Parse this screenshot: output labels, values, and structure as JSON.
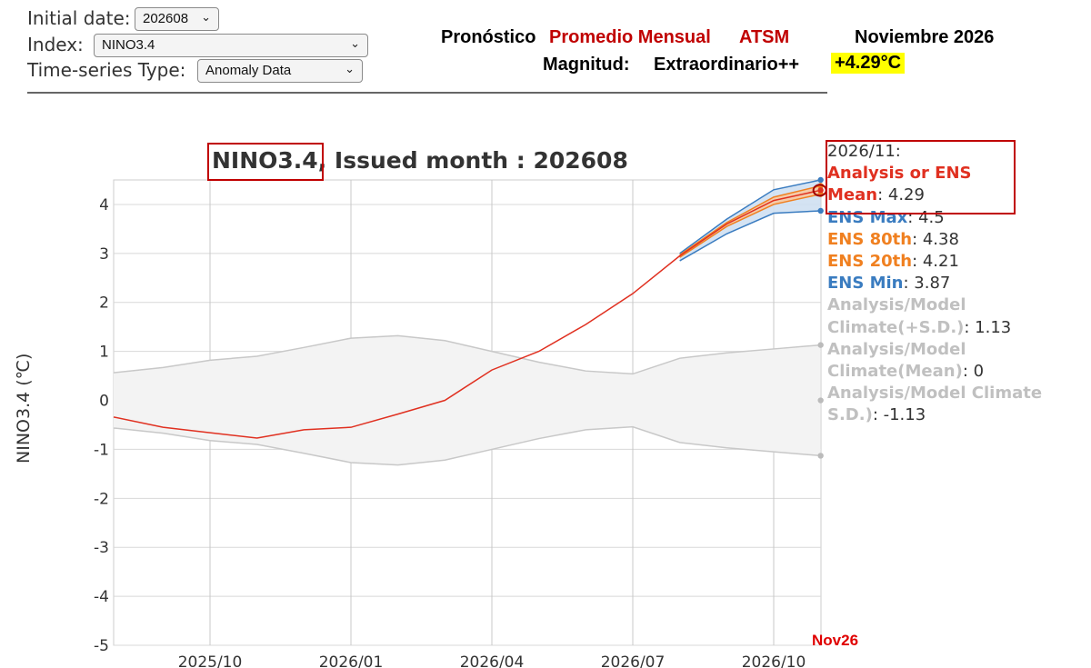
{
  "controls": {
    "initial_date": {
      "label": "Initial date:",
      "value": "202608"
    },
    "index": {
      "label": "Index:",
      "value": "NINO3.4"
    },
    "series_type": {
      "label": "Time-series Type:",
      "value": "Anomaly Data"
    }
  },
  "forecast": {
    "pronostico": "Pronóstico",
    "promedio": "Promedio Mensual",
    "atsm": "ATSM",
    "month": "Noviembre 2026",
    "magnitud_label": "Magnitud:",
    "magnitud_value": "Extraordinario++",
    "value": "+4.29°C",
    "highlight_color": "#ffff00"
  },
  "chart_title": {
    "index": "NINO3.4",
    "rest": ", Issued month : 202608"
  },
  "chart_data": {
    "type": "line",
    "title": "NINO3.4, Issued month : 202608",
    "ylabel": "NINO3.4 (℃)",
    "ylim": [
      -5,
      4.5
    ],
    "yticks": [
      -5,
      -4,
      -3,
      -2,
      -1,
      0,
      1,
      2,
      3,
      4
    ],
    "x_months": [
      "2025/08",
      "2025/09",
      "2025/10",
      "2025/11",
      "2025/12",
      "2026/01",
      "2026/02",
      "2026/03",
      "2026/04",
      "2026/05",
      "2026/06",
      "2026/07",
      "2026/08",
      "2026/09",
      "2026/10",
      "2026/11"
    ],
    "xticks": [
      "2025/10",
      "2026/01",
      "2026/04",
      "2026/07",
      "2026/10"
    ],
    "grid": true,
    "series": [
      {
        "name": "Analysis or ENS Mean",
        "color": "#e03020",
        "values": [
          -0.35,
          -0.55,
          -0.66,
          -0.77,
          -0.6,
          -0.55,
          -0.28,
          0.0,
          0.62,
          1.0,
          1.55,
          2.18,
          2.95,
          3.6,
          4.08,
          4.29
        ]
      },
      {
        "name": "ENS Max",
        "color": "#3a7cc0",
        "values": [
          null,
          null,
          null,
          null,
          null,
          null,
          null,
          null,
          null,
          null,
          null,
          null,
          3.0,
          3.7,
          4.3,
          4.5
        ]
      },
      {
        "name": "ENS 80th",
        "color": "#f08020",
        "values": [
          null,
          null,
          null,
          null,
          null,
          null,
          null,
          null,
          null,
          null,
          null,
          null,
          2.97,
          3.63,
          4.15,
          4.38
        ]
      },
      {
        "name": "ENS 20th",
        "color": "#f08020",
        "values": [
          null,
          null,
          null,
          null,
          null,
          null,
          null,
          null,
          null,
          null,
          null,
          null,
          2.92,
          3.55,
          4.0,
          4.21
        ]
      },
      {
        "name": "ENS Min",
        "color": "#3a7cc0",
        "values": [
          null,
          null,
          null,
          null,
          null,
          null,
          null,
          null,
          null,
          null,
          null,
          null,
          2.85,
          3.4,
          3.82,
          3.87
        ]
      },
      {
        "name": "Analysis/Model Climate(+S.D.)",
        "color": "#c8c8c8",
        "values": [
          0.57,
          0.67,
          0.82,
          0.9,
          1.08,
          1.27,
          1.32,
          1.22,
          1.0,
          0.78,
          0.6,
          0.54,
          0.86,
          0.97,
          1.05,
          1.13
        ]
      },
      {
        "name": "Analysis/Model Climate(Mean)",
        "color": "#c8c8c8",
        "values": [
          0,
          0,
          0,
          0,
          0,
          0,
          0,
          0,
          0,
          0,
          0,
          0,
          0,
          0,
          0,
          0
        ]
      },
      {
        "name": "Analysis/Model Climate S.D.)",
        "color": "#c8c8c8",
        "values": [
          -0.57,
          -0.67,
          -0.82,
          -0.9,
          -1.08,
          -1.27,
          -1.32,
          -1.22,
          -1.0,
          -0.78,
          -0.6,
          -0.54,
          -0.86,
          -0.97,
          -1.05,
          -1.13
        ]
      }
    ],
    "annotation": "Nov26"
  },
  "tooltip": {
    "date": "2026/11:",
    "items": [
      {
        "key": "Analysis or ENS Mean",
        "value": ": 4.29",
        "color": "#e03020"
      },
      {
        "key": "ENS Max",
        "value": ": 4.5",
        "color": "#3a7cc0"
      },
      {
        "key": "ENS 80th",
        "value": ": 4.38",
        "color": "#f08020"
      },
      {
        "key": "ENS 20th",
        "value": ": 4.21",
        "color": "#f08020"
      },
      {
        "key": "ENS Min",
        "value": ": 3.87",
        "color": "#3a7cc0"
      },
      {
        "key": "Analysis/Model Climate(+S.D.)",
        "value": ": 1.13",
        "color": "#c0c0c0"
      },
      {
        "key": "Analysis/Model Climate(Mean)",
        "value": ": 0",
        "color": "#c0c0c0"
      },
      {
        "key": "Analysis/Model Climate S.D.)",
        "value": ": -1.13",
        "color": "#c0c0c0"
      }
    ]
  }
}
